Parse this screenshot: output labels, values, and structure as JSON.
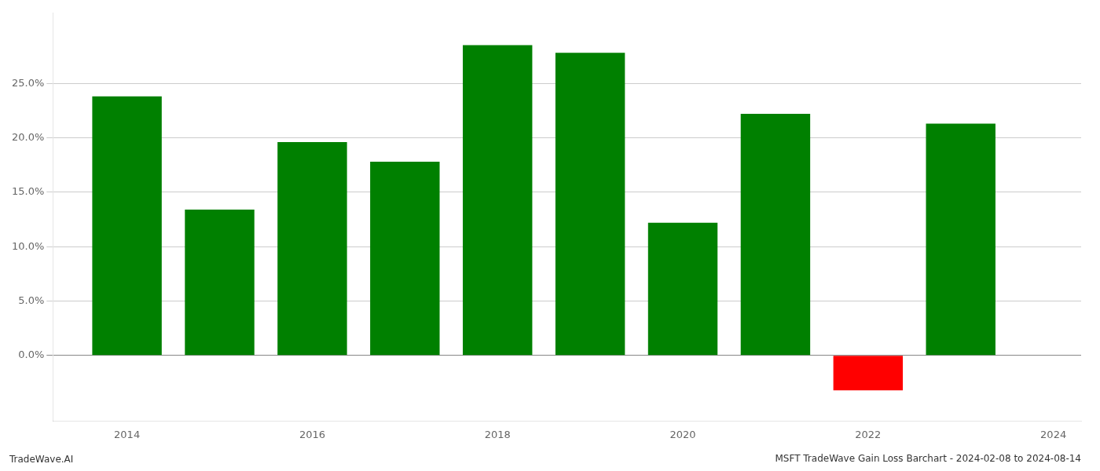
{
  "chart_data": {
    "type": "bar",
    "title": "MSFT TradeWave Gain Loss Barchart - 2024-02-08 to 2024-08-14",
    "annotations": [
      "TradeWave.AI"
    ],
    "x": [
      2014,
      2015,
      2016,
      2017,
      2018,
      2019,
      2020,
      2021,
      2022,
      2023
    ],
    "values": [
      0.238,
      0.134,
      0.196,
      0.178,
      0.285,
      0.278,
      0.122,
      0.222,
      -0.032,
      0.213
    ],
    "colors": [
      "#008000",
      "#008000",
      "#008000",
      "#008000",
      "#008000",
      "#008000",
      "#008000",
      "#008000",
      "#ff0000",
      "#008000"
    ],
    "xlim": [
      2013.2,
      2024.3
    ],
    "xticks": [
      2014,
      2016,
      2018,
      2020,
      2022,
      2024
    ],
    "ylim": [
      -0.06,
      0.315
    ],
    "yticks": [
      {
        "value": 0.0,
        "label": "0.0%"
      },
      {
        "value": 0.05,
        "label": "5.0%"
      },
      {
        "value": 0.1,
        "label": "10.0%"
      },
      {
        "value": 0.15,
        "label": "15.0%"
      },
      {
        "value": 0.2,
        "label": "20.0%"
      },
      {
        "value": 0.25,
        "label": "25.0%"
      }
    ],
    "grid": "y"
  }
}
